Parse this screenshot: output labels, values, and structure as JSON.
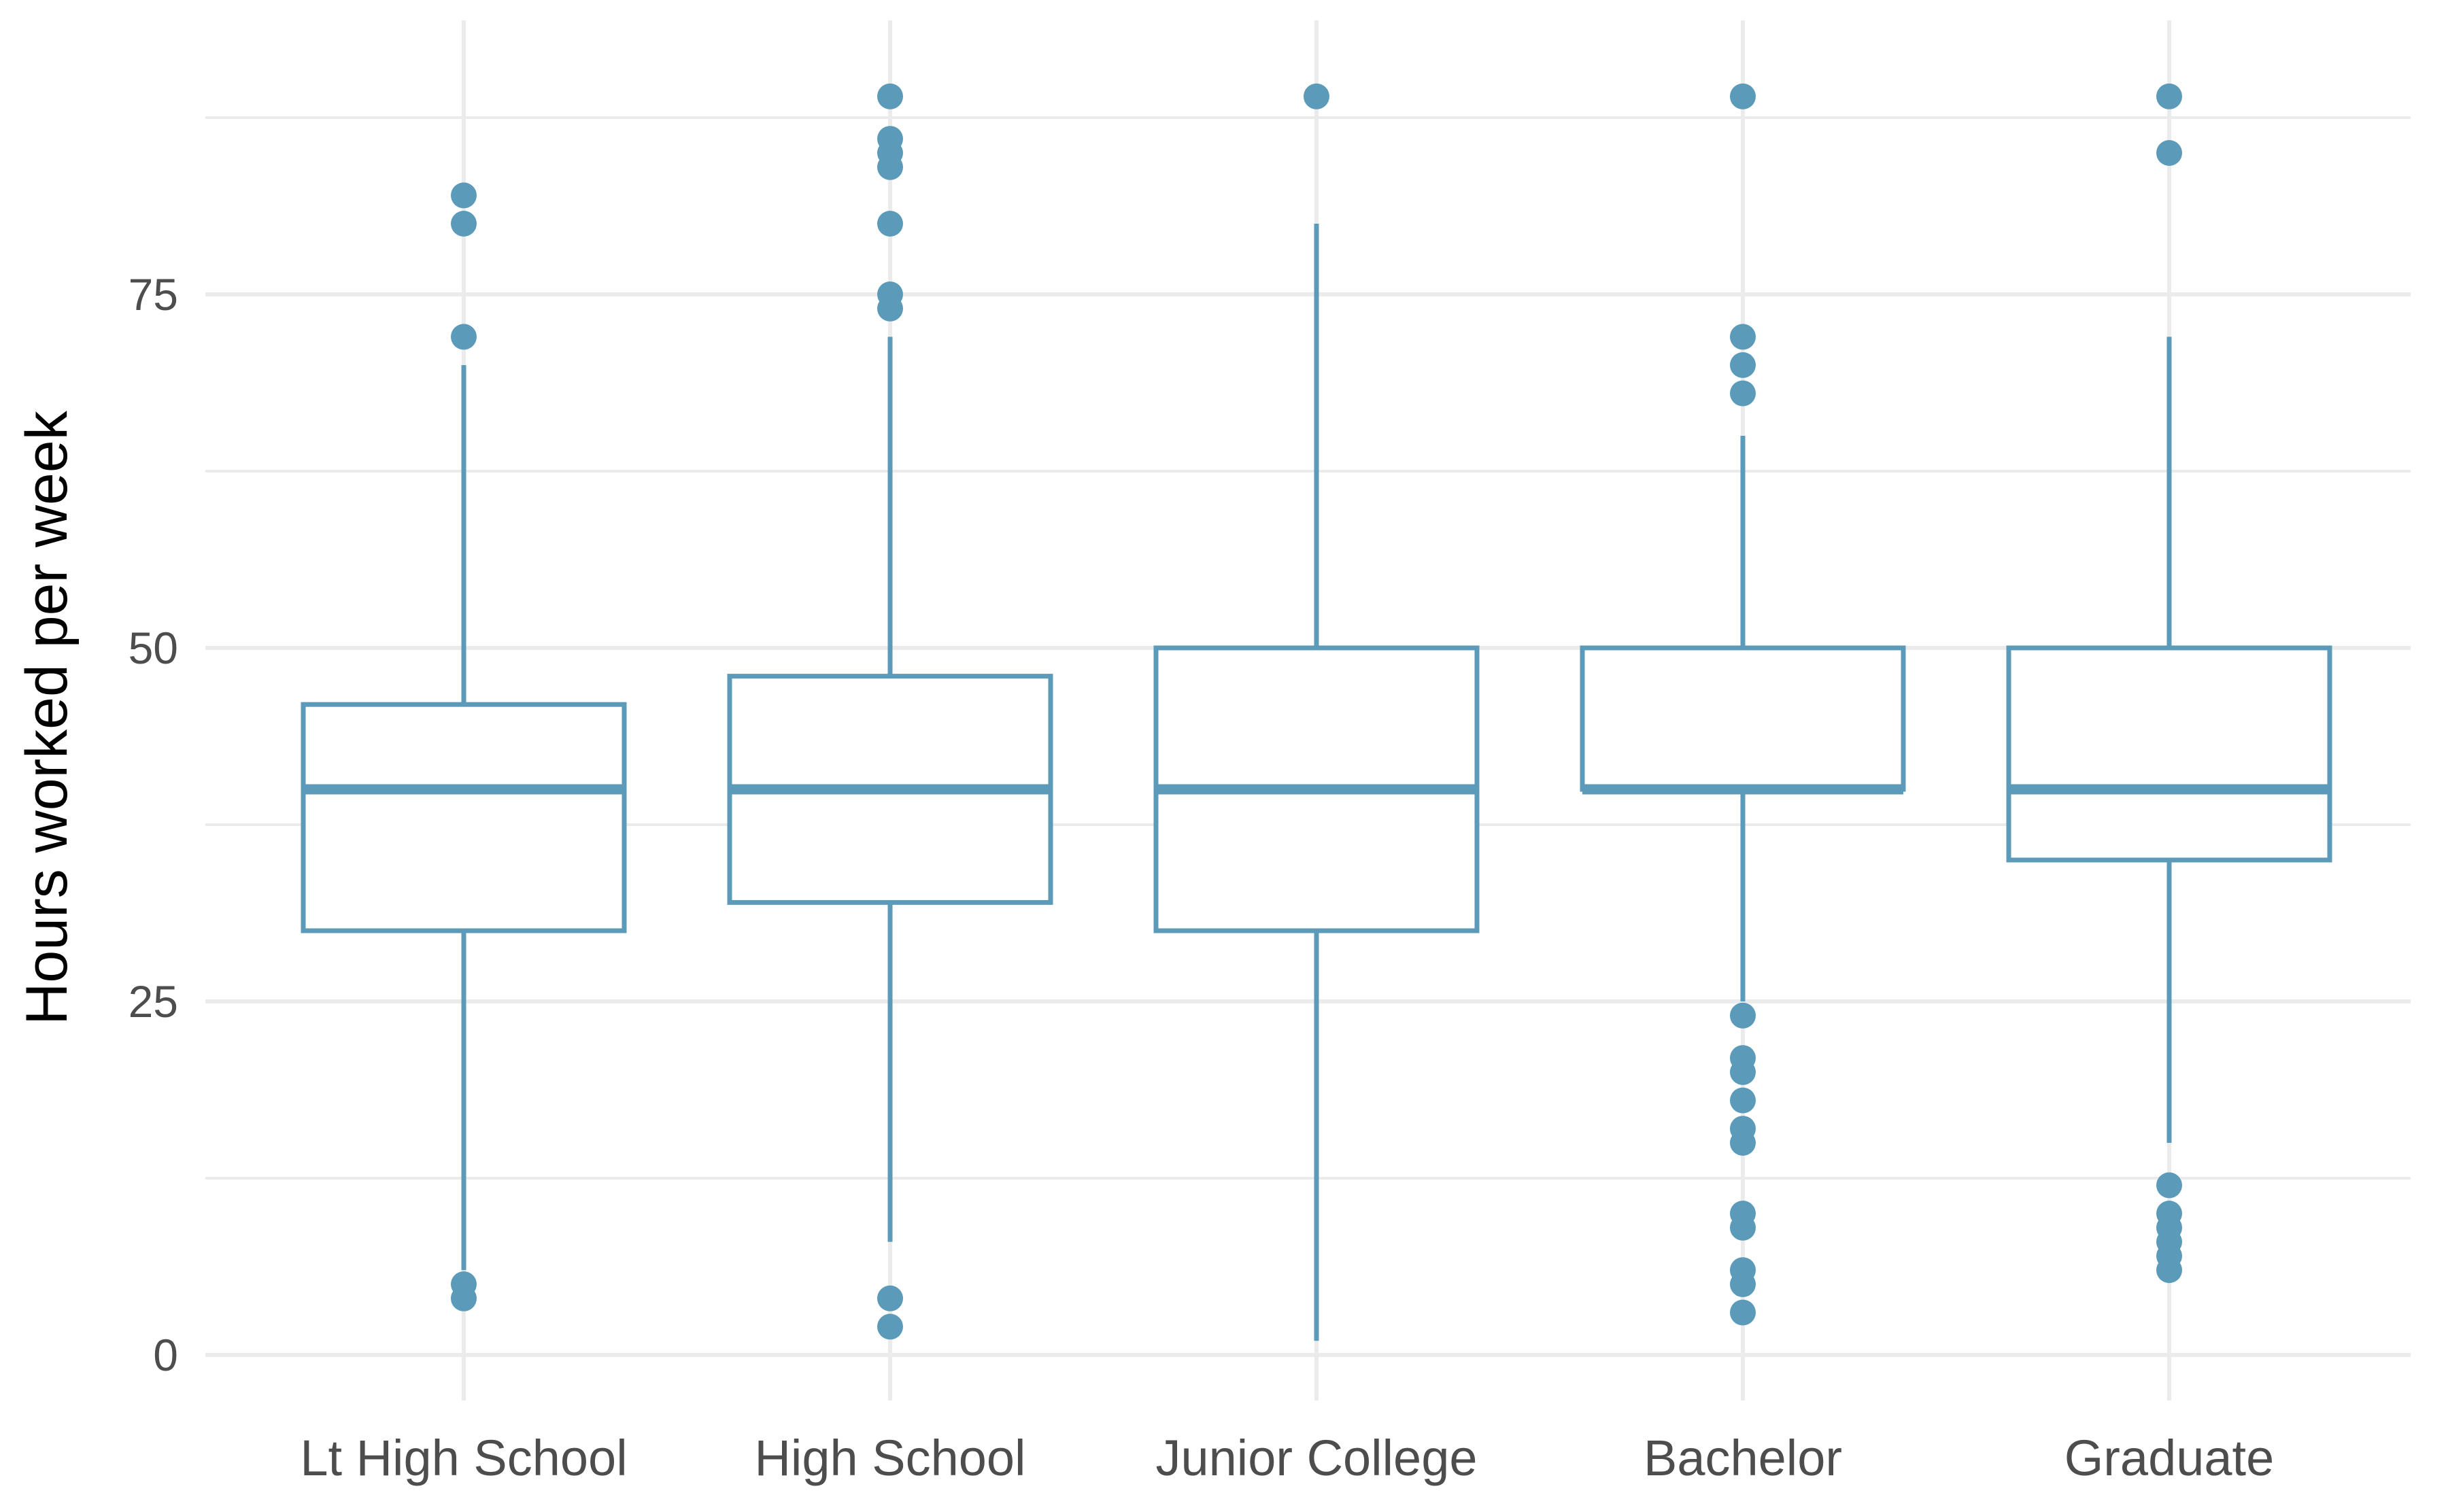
{
  "chart_data": {
    "type": "boxplot",
    "title": "",
    "xlabel": "",
    "ylabel": "Hours worked per week",
    "ylim": [
      -3,
      94
    ],
    "yticks": [
      0,
      25,
      50,
      75
    ],
    "yticks_minor": [
      12.5,
      37.5,
      62.5,
      87.5
    ],
    "ytick_labels": [
      "0",
      "25",
      "50",
      "75"
    ],
    "color": "#5b9bb9",
    "grid": true,
    "categories": [
      "Lt High School",
      "High School",
      "Junior College",
      "Bachelor",
      "Graduate"
    ],
    "boxes": [
      {
        "category": "Lt High School",
        "whisker_low": 6,
        "q1": 30,
        "median": 40,
        "q3": 46,
        "whisker_high": 70,
        "outliers": [
          82,
          80,
          72,
          5,
          4
        ]
      },
      {
        "category": "High School",
        "whisker_low": 8,
        "q1": 32,
        "median": 40,
        "q3": 48,
        "whisker_high": 72,
        "outliers": [
          89,
          86,
          85,
          84,
          80,
          75,
          74,
          4,
          2
        ]
      },
      {
        "category": "Junior College",
        "whisker_low": 1,
        "q1": 30,
        "median": 40,
        "q3": 50,
        "whisker_high": 80,
        "outliers": [
          89
        ]
      },
      {
        "category": "Bachelor",
        "whisker_low": 25,
        "q1": 40,
        "median": 40,
        "q3": 50,
        "whisker_high": 65,
        "outliers": [
          89,
          72,
          70,
          68,
          24,
          21,
          20,
          18,
          16,
          15,
          10,
          9,
          6,
          5,
          3
        ]
      },
      {
        "category": "Graduate",
        "whisker_low": 15,
        "q1": 35,
        "median": 40,
        "q3": 50,
        "whisker_high": 72,
        "outliers": [
          89,
          85,
          12,
          10,
          9,
          8,
          7,
          6
        ]
      }
    ]
  }
}
